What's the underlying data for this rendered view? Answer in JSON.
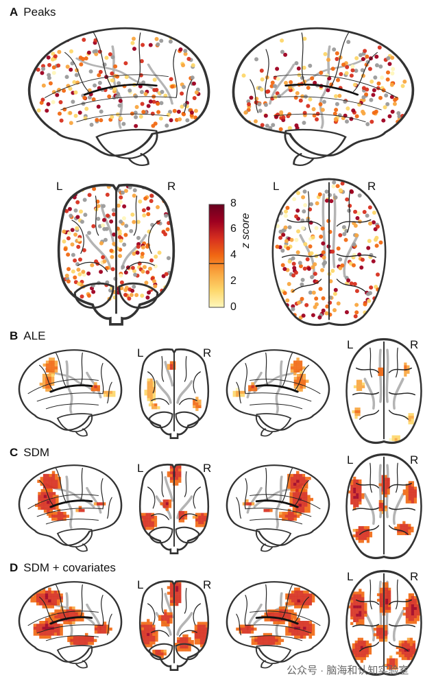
{
  "sections": {
    "A": {
      "letter": "A",
      "title": "Peaks"
    },
    "B": {
      "letter": "B",
      "title": "ALE"
    },
    "C": {
      "letter": "C",
      "title": "SDM"
    },
    "D": {
      "letter": "D",
      "title": "SDM + covariates"
    }
  },
  "orientation": {
    "left": "L",
    "right": "R"
  },
  "colorbar": {
    "label": "z score",
    "ticks": [
      "0",
      "2",
      "4",
      "6",
      "8"
    ],
    "min": 0,
    "max": 8,
    "threshold": 3.4,
    "colors": [
      "#fff7bc",
      "#fdd76b",
      "#f9a640",
      "#f16913",
      "#d7301f",
      "#9e0020",
      "#67001f"
    ]
  },
  "colors": {
    "outline": "#333333",
    "vessel": "#b4b4b4",
    "peak_gray": "#9a9a9a"
  },
  "watermark": "公众号 · 脑海和认知实验室"
}
